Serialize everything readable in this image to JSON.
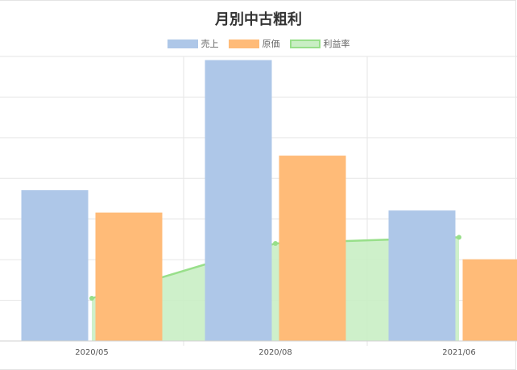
{
  "chart_data": {
    "type": "bar",
    "title": "月別中古粗利",
    "categories": [
      "2020/05",
      "2020/08",
      "2021/06"
    ],
    "series": [
      {
        "name": "売上",
        "kind": "bar",
        "color": "#aec7e8",
        "border": "#aec7e8",
        "values": [
          3.7,
          6.9,
          3.2
        ]
      },
      {
        "name": "原価",
        "kind": "bar",
        "color": "#ffbb78",
        "border": "#ffbb78",
        "values": [
          3.15,
          4.55,
          2.0
        ]
      },
      {
        "name": "利益率",
        "kind": "area",
        "color": "#c9eec4",
        "border": "#98df8a",
        "values": [
          1.05,
          2.4,
          2.55
        ]
      }
    ],
    "ylim": [
      0,
      7
    ],
    "legend_position": "top",
    "grid": true
  }
}
